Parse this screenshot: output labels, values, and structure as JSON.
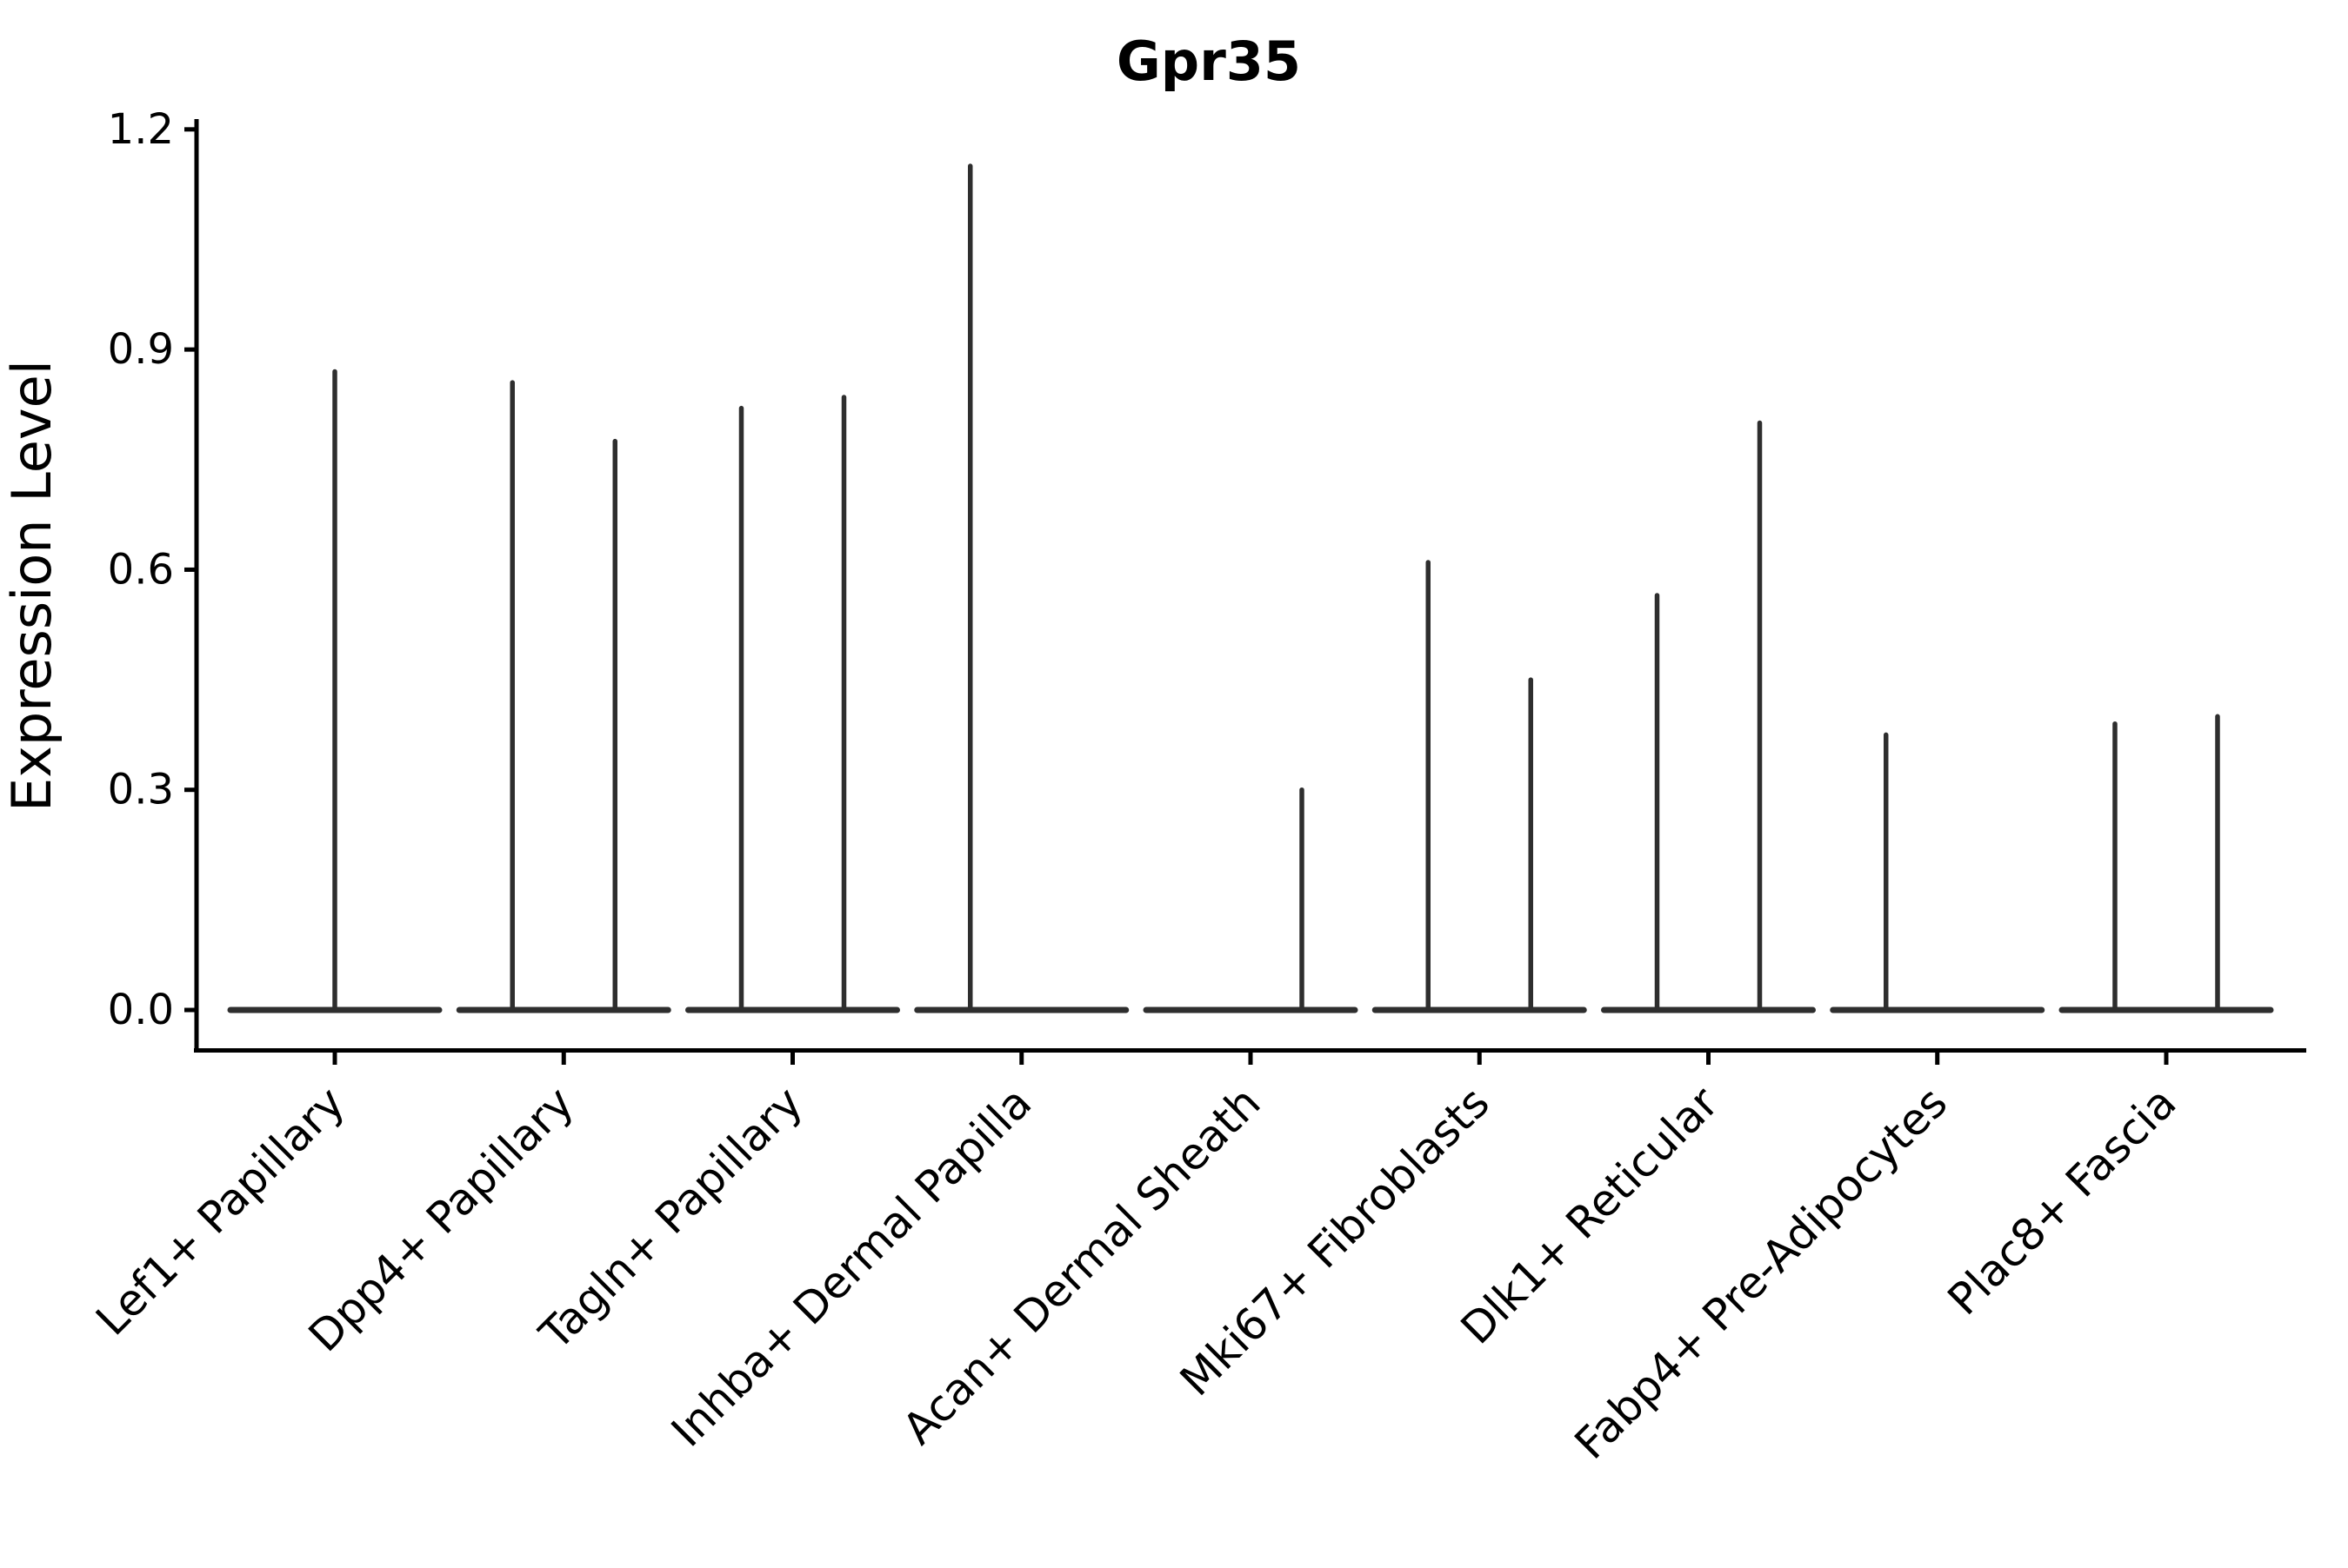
{
  "chart_data": {
    "type": "violin",
    "title": "Gpr35",
    "xlabel": "",
    "ylabel": "Expression Level",
    "yticks": [
      "0.0",
      "0.3",
      "0.6",
      "0.9",
      "1.2"
    ],
    "ytick_values": [
      0.0,
      0.3,
      0.6,
      0.9,
      1.2
    ],
    "ylim": [
      0,
      1.21
    ],
    "grid": false,
    "legend": "none",
    "categories": [
      "Lef1+ Papillary",
      "Dpp4+ Papillary",
      "Tagln+ Papillary",
      "Inhba+ Dermal Papilla",
      "Acan+ Dermal Sheath",
      "Mki67+ Fibroblasts",
      "Dlk1+ Reticular",
      "Fabp4+ Pre-Adipocytes",
      "Plac8+ Fascia"
    ],
    "series": [
      {
        "category": "Lef1+ Papillary",
        "spikes": [
          {
            "pos": "center",
            "max": 0.87
          }
        ]
      },
      {
        "category": "Dpp4+ Papillary",
        "spikes": [
          {
            "pos": "left",
            "max": 0.855
          },
          {
            "pos": "right",
            "max": 0.775
          }
        ]
      },
      {
        "category": "Tagln+ Papillary",
        "spikes": [
          {
            "pos": "left",
            "max": 0.82
          },
          {
            "pos": "right",
            "max": 0.835
          }
        ]
      },
      {
        "category": "Inhba+ Dermal Papilla",
        "spikes": [
          {
            "pos": "left",
            "max": 1.15
          }
        ]
      },
      {
        "category": "Acan+ Dermal Sheath",
        "spikes": [
          {
            "pos": "right",
            "max": 0.3
          }
        ]
      },
      {
        "category": "Mki67+ Fibroblasts",
        "spikes": [
          {
            "pos": "left",
            "max": 0.61
          },
          {
            "pos": "right",
            "max": 0.45
          }
        ]
      },
      {
        "category": "Dlk1+ Reticular",
        "spikes": [
          {
            "pos": "left",
            "max": 0.565
          },
          {
            "pos": "right",
            "max": 0.8
          }
        ]
      },
      {
        "category": "Fabp4+ Pre-Adipocytes",
        "spikes": [
          {
            "pos": "left",
            "max": 0.375
          }
        ]
      },
      {
        "category": "Plac8+ Fascia",
        "spikes": [
          {
            "pos": "left",
            "max": 0.39
          },
          {
            "pos": "right",
            "max": 0.4
          }
        ]
      }
    ],
    "baseline_value": 0.0,
    "colors": {
      "violin_stroke": "#2e2e2e",
      "axis": "#000000",
      "background": "#ffffff"
    }
  }
}
